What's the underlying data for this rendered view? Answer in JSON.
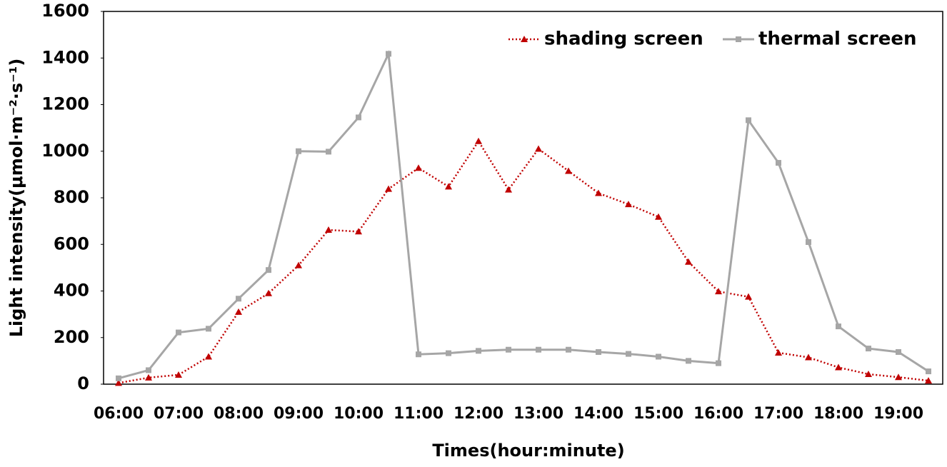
{
  "chart_data": {
    "type": "line",
    "x_label": "Times(hour:minute)",
    "y_label": "Light intensity(μmol·m⁻²·s⁻¹)",
    "categories": [
      "06:00",
      null,
      "07:00",
      null,
      "08:00",
      null,
      "09:00",
      null,
      "10:00",
      null,
      "11:00",
      null,
      "12:00",
      null,
      "13:00",
      null,
      "14:00",
      null,
      "15:00",
      null,
      "16:00",
      null,
      "17:00",
      null,
      "18:00",
      null,
      "19:00",
      null
    ],
    "series": [
      {
        "name": "shading screen",
        "color": "#c00000",
        "line_style": "dotted",
        "marker": "triangle",
        "values": [
          5,
          28,
          40,
          118,
          310,
          390,
          510,
          662,
          655,
          838,
          928,
          848,
          1043,
          835,
          1010,
          915,
          820,
          772,
          718,
          525,
          398,
          375,
          135,
          115,
          72,
          43,
          30,
          15
        ]
      },
      {
        "name": "thermal screen",
        "color": "#a6a6a6",
        "line_style": "solid",
        "marker": "square",
        "values": [
          25,
          60,
          222,
          238,
          367,
          490,
          1000,
          998,
          1145,
          1418,
          128,
          133,
          143,
          148,
          148,
          148,
          138,
          130,
          118,
          100,
          90,
          1133,
          950,
          610,
          248,
          153,
          138,
          55
        ]
      }
    ],
    "ylim": [
      0,
      1600
    ],
    "yticks": [
      0,
      200,
      400,
      600,
      800,
      1000,
      1200,
      1400,
      1600
    ],
    "grid": false,
    "legend": "upper right"
  }
}
